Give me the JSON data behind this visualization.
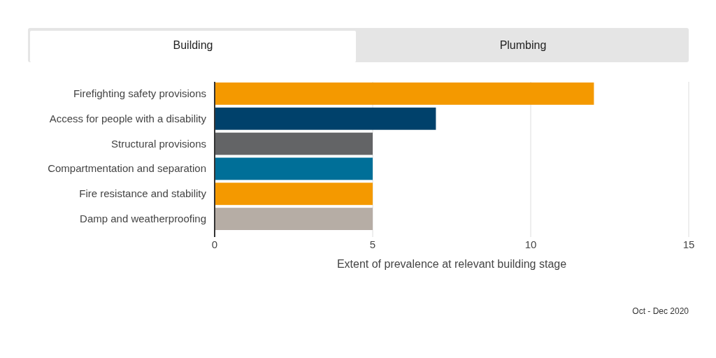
{
  "chart_data": {
    "type": "bar",
    "orientation": "horizontal",
    "categories": [
      "Firefighting safety provisions",
      "Access for people with a disability",
      "Structural provisions",
      "Compartmentation and separation",
      "Fire resistance and stability",
      "Damp and weatherproofing"
    ],
    "values": [
      12,
      7,
      5,
      5,
      5,
      5
    ],
    "colors": [
      "#f49900",
      "#00416b",
      "#636466",
      "#006f98",
      "#f49900",
      "#b6ada5"
    ],
    "xlim": [
      0,
      15
    ],
    "xticks": [
      0,
      5,
      10,
      15
    ],
    "grid": "x",
    "xlabel": "Extent of prevalence at relevant building stage",
    "annotations": [
      "Building",
      "Plumbing",
      "Oct - Dec 2020"
    ]
  }
}
